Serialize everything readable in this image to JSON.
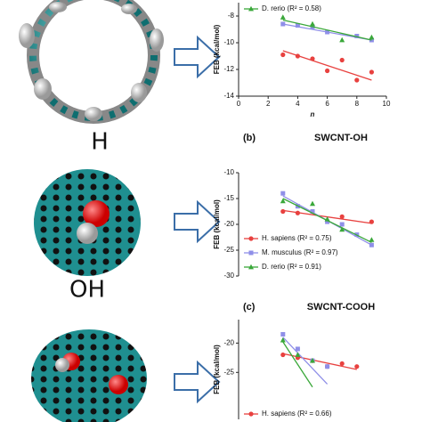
{
  "structures": [
    {
      "label": "H"
    },
    {
      "label": "OH"
    }
  ],
  "chart_data": [
    {
      "type": "scatter",
      "x_label": "n",
      "y_label": "FEB (kcal/mol)",
      "xlim": [
        0,
        10
      ],
      "xticks": [
        0,
        2,
        4,
        6,
        8,
        10
      ],
      "ylim": [
        -14,
        -7
      ],
      "yticks": [
        -14,
        -12,
        -10,
        -8
      ],
      "series": [
        {
          "color": "#e8413f",
          "marker": "circle",
          "x": [
            3,
            4,
            5,
            6,
            7,
            8,
            9
          ],
          "values": [
            -10.9,
            -11.0,
            -11.2,
            -12.1,
            -11.3,
            -12.8,
            -12.2
          ],
          "trend": [
            -10.6,
            -12.8
          ]
        },
        {
          "color": "#8f8fe8",
          "marker": "square",
          "x": [
            3,
            4,
            5,
            6,
            8,
            9
          ],
          "values": [
            -8.6,
            -8.7,
            -8.8,
            -9.2,
            -9.5,
            -9.8
          ],
          "trend": [
            -8.6,
            -9.8
          ]
        },
        {
          "name": "D. rerio (R² = 0.58)",
          "color": "#3aa83a",
          "marker": "triangle",
          "x": [
            3,
            5,
            7,
            9
          ],
          "values": [
            -8.1,
            -8.6,
            -9.8,
            -9.6
          ],
          "trend": [
            -8.3,
            -9.8
          ]
        }
      ]
    },
    {
      "type": "scatter",
      "panel": "(b)",
      "title": "SWCNT-OH",
      "y_label": "FEB (kcal/mol)",
      "xlim": [
        0,
        10
      ],
      "ylim": [
        -30,
        -10
      ],
      "yticks": [
        -30,
        -25,
        -20,
        -15,
        -10
      ],
      "series": [
        {
          "name": "H. sapiens (R² = 0.75)",
          "color": "#e8413f",
          "marker": "circle",
          "x": [
            3,
            4,
            5,
            7,
            9
          ],
          "values": [
            -17.5,
            -17.8,
            -17.5,
            -18.5,
            -19.5
          ],
          "trend": [
            -17.3,
            -19.8
          ]
        },
        {
          "name": "M. musculus (R² = 0.97)",
          "color": "#8f8fe8",
          "marker": "square",
          "x": [
            3,
            4,
            5,
            6,
            7,
            8,
            9
          ],
          "values": [
            -14,
            -16.5,
            -17.5,
            -19.5,
            -20,
            -22,
            -24
          ],
          "trend": [
            -14.5,
            -24
          ]
        },
        {
          "name": "D. rerio (R² = 0.91)",
          "color": "#3aa83a",
          "marker": "triangle",
          "x": [
            3,
            5,
            6,
            7,
            9
          ],
          "values": [
            -15.5,
            -16,
            -19,
            -21,
            -23
          ],
          "trend": [
            -15,
            -23.5
          ]
        }
      ]
    },
    {
      "type": "scatter",
      "panel": "(c)",
      "title": "SWCNT-COOH",
      "y_label": "FEB (kcal/mol)",
      "xlim": [
        0,
        10
      ],
      "ylim": [
        -33,
        -16
      ],
      "yticks": [
        -25,
        -20
      ],
      "series": [
        {
          "name": "H. sapiens (R² = 0.66)",
          "color": "#e8413f",
          "marker": "circle",
          "x": [
            3,
            4,
            5,
            6,
            7,
            8
          ],
          "values": [
            -22,
            -22.5,
            -23,
            -24,
            -23.5,
            -24
          ],
          "trend": [
            -21.8,
            -24.5
          ]
        },
        {
          "color": "#8f8fe8",
          "marker": "square",
          "x": [
            3,
            4,
            5,
            6
          ],
          "values": [
            -18.5,
            -21,
            -23,
            -24
          ],
          "trend": [
            -19,
            -27
          ]
        },
        {
          "color": "#3aa83a",
          "marker": "triangle",
          "x": [
            3,
            4,
            5
          ],
          "values": [
            -19.5,
            -22,
            -23
          ],
          "trend": [
            -19.8,
            -27.5
          ]
        }
      ]
    }
  ]
}
